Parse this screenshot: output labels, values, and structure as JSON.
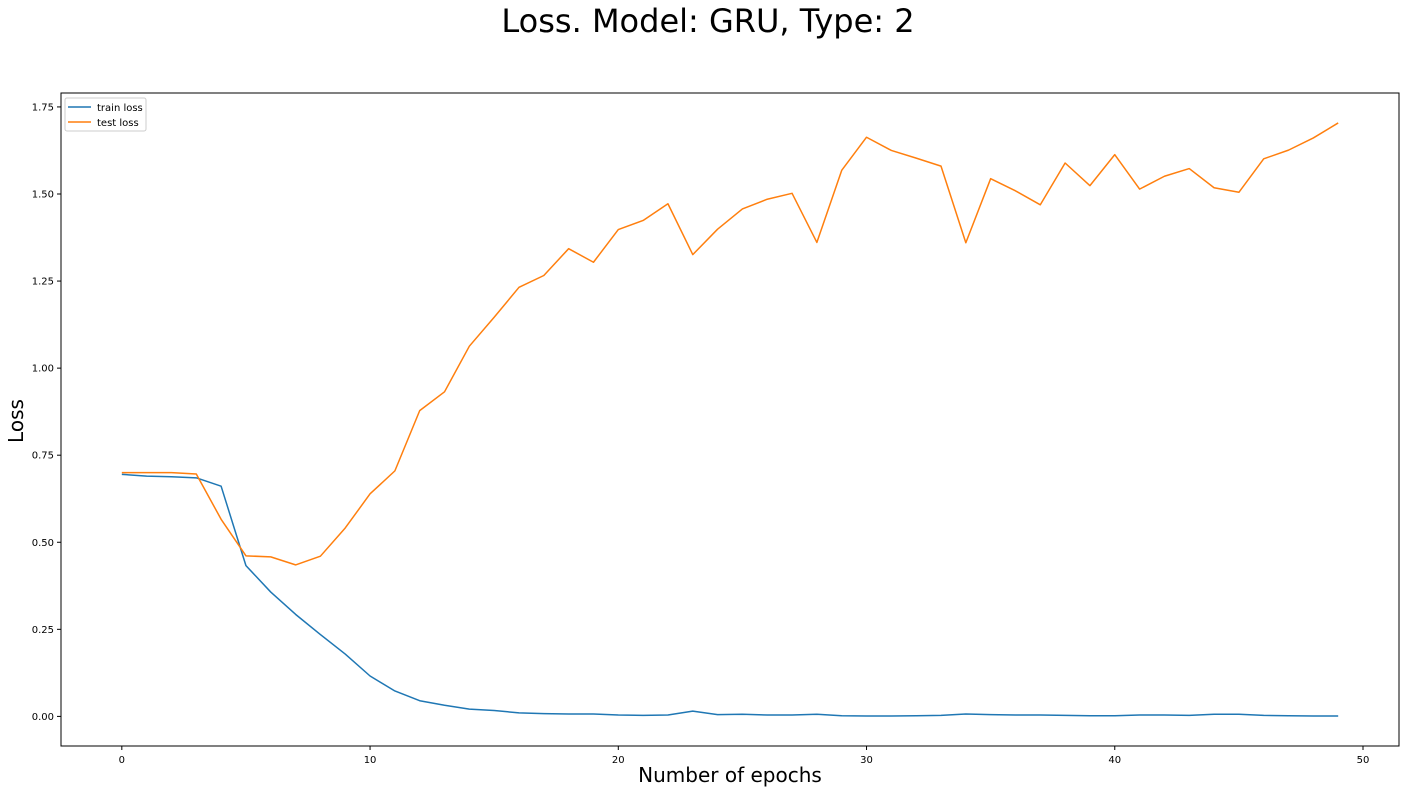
{
  "chart_data": {
    "type": "line",
    "title": "Loss. Model: GRU, Type: 2",
    "xlabel": "Number of epochs",
    "ylabel": "Loss",
    "xlim": [
      -2.45,
      51.45
    ],
    "ylim": [
      -0.085,
      1.79
    ],
    "xticks": [
      0,
      10,
      20,
      30,
      40,
      50
    ],
    "xtick_labels": [
      "0",
      "10",
      "20",
      "30",
      "40",
      "50"
    ],
    "yticks": [
      0.0,
      0.25,
      0.5,
      0.75,
      1.0,
      1.25,
      1.5,
      1.75
    ],
    "ytick_labels": [
      "0.00",
      "0.25",
      "0.50",
      "0.75",
      "1.00",
      "1.25",
      "1.50",
      "1.75"
    ],
    "grid": false,
    "legend": "upper left",
    "x": [
      0,
      1,
      2,
      3,
      4,
      5,
      6,
      7,
      8,
      9,
      10,
      11,
      12,
      13,
      14,
      15,
      16,
      17,
      18,
      19,
      20,
      21,
      22,
      23,
      24,
      25,
      26,
      27,
      28,
      29,
      30,
      31,
      32,
      33,
      34,
      35,
      36,
      37,
      38,
      39,
      40,
      41,
      42,
      43,
      44,
      45,
      46,
      47,
      48,
      49
    ],
    "series": [
      {
        "name": "train loss",
        "color": "#1f77b4",
        "values": [
          0.695,
          0.69,
          0.688,
          0.685,
          0.661,
          0.433,
          0.357,
          0.293,
          0.235,
          0.179,
          0.116,
          0.073,
          0.045,
          0.032,
          0.021,
          0.017,
          0.01,
          0.008,
          0.007,
          0.007,
          0.004,
          0.003,
          0.004,
          0.015,
          0.005,
          0.006,
          0.004,
          0.004,
          0.006,
          0.002,
          0.001,
          0.001,
          0.002,
          0.003,
          0.007,
          0.005,
          0.004,
          0.004,
          0.003,
          0.002,
          0.002,
          0.004,
          0.004,
          0.003,
          0.006,
          0.006,
          0.003,
          0.002,
          0.001,
          0.001
        ]
      },
      {
        "name": "test loss",
        "color": "#ff7f0e",
        "values": [
          0.7,
          0.7,
          0.7,
          0.696,
          0.566,
          0.461,
          0.458,
          0.435,
          0.46,
          0.541,
          0.639,
          0.705,
          0.878,
          0.932,
          1.063,
          1.146,
          1.232,
          1.266,
          1.343,
          1.304,
          1.398,
          1.424,
          1.472,
          1.326,
          1.399,
          1.457,
          1.485,
          1.502,
          1.361,
          1.568,
          1.663,
          1.625,
          1.603,
          1.58,
          1.36,
          1.544,
          1.509,
          1.469,
          1.589,
          1.524,
          1.613,
          1.514,
          1.551,
          1.573,
          1.518,
          1.505,
          1.601,
          1.626,
          1.661,
          1.704
        ]
      }
    ]
  }
}
